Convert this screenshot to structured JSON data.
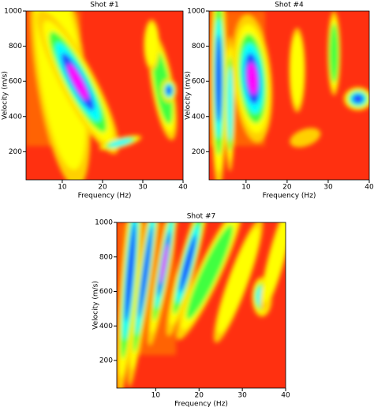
{
  "chart_data": [
    {
      "type": "heatmap",
      "title": "Shot #1",
      "x_label": "Frequency (Hz)",
      "y_label": "Velocity (m/s)",
      "xlim": [
        1,
        40
      ],
      "xticks": [
        10,
        20,
        30,
        40
      ],
      "ylim": [
        40,
        1000
      ],
      "yticks": [
        200,
        400,
        600,
        800,
        1000
      ]
    },
    {
      "type": "heatmap",
      "title": "Shot #4",
      "x_label": "Frequency (Hz)",
      "y_label": "Velocity (m/s)",
      "xlim": [
        1,
        40
      ],
      "xticks": [
        10,
        20,
        30,
        40
      ],
      "ylim": [
        40,
        1000
      ],
      "yticks": [
        200,
        400,
        600,
        800,
        1000
      ]
    },
    {
      "type": "heatmap",
      "title": "Shot #7",
      "x_label": "Frequency (Hz)",
      "y_label": "Velocity (m/s)",
      "xlim": [
        1,
        40
      ],
      "xticks": [
        10,
        20,
        30,
        40
      ],
      "ylim": [
        40,
        1000
      ],
      "yticks": [
        200,
        400,
        600,
        800,
        1000
      ]
    }
  ]
}
